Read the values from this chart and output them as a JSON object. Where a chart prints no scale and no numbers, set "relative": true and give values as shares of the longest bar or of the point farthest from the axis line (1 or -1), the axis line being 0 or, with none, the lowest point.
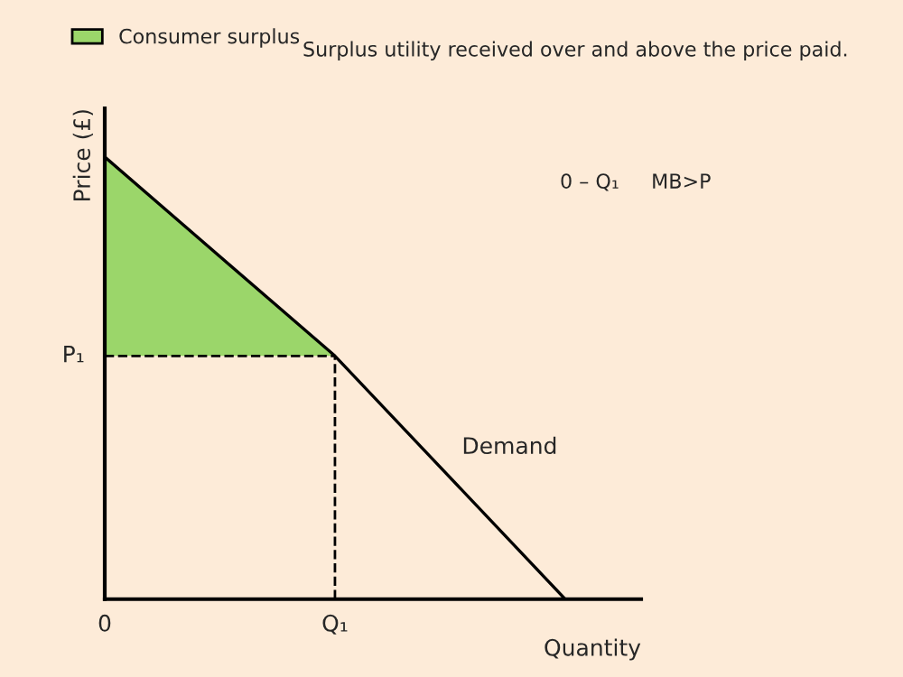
{
  "chart_data": {
    "type": "line",
    "relative": true,
    "xlabel": "Quantity",
    "ylabel": "Price (£)",
    "categories": [
      "0",
      "Q₁",
      null
    ],
    "series": [
      {
        "name": "Consumer surplus",
        "type": "area",
        "color": "#9bd66a",
        "values": [
          1,
          0.55,
          null
        ]
      },
      {
        "name": "Demand",
        "color": "#000000",
        "values": [
          1,
          0.55,
          0
        ]
      }
    ],
    "ref_lines": [
      {
        "axis": "y",
        "value": 0.55,
        "label": "P₁",
        "line_style": "dashed",
        "color": "#000000"
      },
      {
        "axis": "x",
        "value": "Q₁",
        "line_style": "dashed",
        "color": "#000000"
      }
    ],
    "legend": "top left",
    "annotations": [
      "Surplus utility received over and above the price paid.",
      "0 – Q₁     MB>P"
    ]
  }
}
